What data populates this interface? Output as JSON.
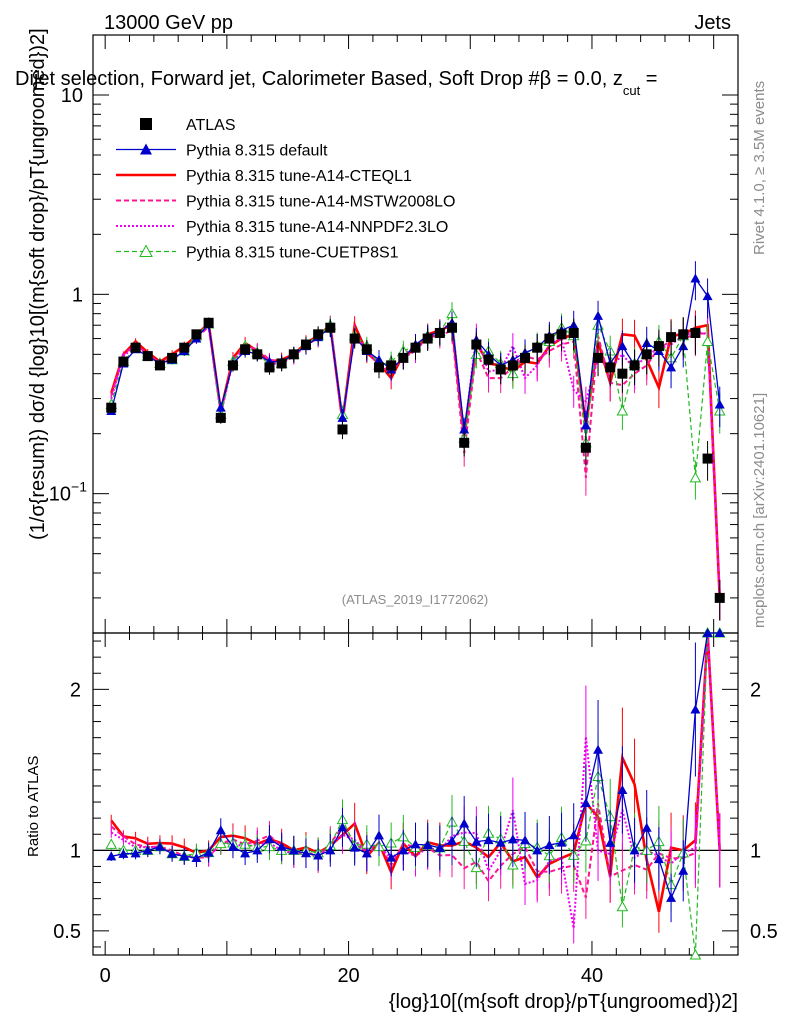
{
  "header": {
    "energy": "13000 GeV pp",
    "category": "Jets"
  },
  "title": "Dijet selection, Forward jet, Calorimeter Based, Soft Drop #β = 0.0, z",
  "title_sub": "cut",
  "title_tail": " =",
  "side": {
    "rivet": "Rivet 4.1.0, ≥ 3.5M events",
    "mcplots": "mcplots.cern.ch [arXiv:2401.10621]"
  },
  "analysis_id": "(ATLAS_2019_I1772062)",
  "axes": {
    "ylabel_main": "(1/σ{resum}) dσ/d {log}10[(m{soft drop}/pT{ungroomed})2]",
    "ylabel_ratio": "Ratio to ATLAS",
    "xlabel": "{log}10[(m{soft drop}/pT{ungroomed})2]"
  },
  "legend": [
    {
      "label": "ATLAS",
      "color": "#000000"
    },
    {
      "label": "Pythia 8.315 default",
      "color": "#0000cc"
    },
    {
      "label": "Pythia 8.315 tune-A14-CTEQL1",
      "color": "#ff0000"
    },
    {
      "label": "Pythia 8.315 tune-A14-MSTW2008LO",
      "color": "#ff1493"
    },
    {
      "label": "Pythia 8.315 tune-A14-NNPDF2.3LO",
      "color": "#ee00ee"
    },
    {
      "label": "Pythia 8.315 tune-CUETP8S1",
      "color": "#22bb22"
    }
  ],
  "chart_data": {
    "type": "line",
    "title": "Dijet selection, Forward jet, Calorimeter Based, Soft Drop beta = 0.0, z_cut =",
    "x": [
      0.5,
      1.5,
      2.5,
      3.5,
      4.5,
      5.5,
      6.5,
      7.5,
      8.5,
      9.5,
      10.5,
      11.5,
      12.5,
      13.5,
      14.5,
      15.5,
      16.5,
      17.5,
      18.5,
      19.5,
      20.5,
      21.5,
      22.5,
      23.5,
      24.5,
      25.5,
      26.5,
      27.5,
      28.5,
      29.5,
      30.5,
      31.5,
      32.5,
      33.5,
      34.5,
      35.5,
      36.5,
      37.5,
      38.5,
      39.5,
      40.5,
      41.5,
      42.5,
      43.5,
      44.5,
      45.5,
      46.5,
      47.5,
      48.5,
      49.5,
      50.5
    ],
    "xlim": [
      -1,
      52
    ],
    "ylim_main": [
      0.02,
      20
    ],
    "yscale_main": "log",
    "ylim_ratio": [
      0.35,
      2.35
    ],
    "x_ticks": [
      0,
      20,
      40
    ],
    "y_ticks_main": [
      "10^-1",
      "1",
      "10"
    ],
    "y_ticks_ratio": [
      0.5,
      1,
      2
    ],
    "series": [
      {
        "name": "ATLAS",
        "values": [
          0.27,
          0.46,
          0.54,
          0.49,
          0.44,
          0.48,
          0.54,
          0.63,
          0.72,
          0.24,
          0.44,
          0.53,
          0.5,
          0.43,
          0.45,
          0.5,
          0.56,
          0.63,
          0.68,
          0.21,
          0.6,
          0.53,
          0.43,
          0.44,
          0.48,
          0.54,
          0.6,
          0.64,
          0.68,
          0.18,
          0.56,
          0.47,
          0.42,
          0.44,
          0.48,
          0.54,
          0.6,
          0.63,
          0.64,
          0.17,
          0.48,
          0.43,
          0.4,
          0.44,
          0.5,
          0.55,
          0.61,
          0.63,
          0.64,
          0.15,
          0.03
        ]
      },
      {
        "name": "Pythia 8.315 default",
        "values": [
          0.26,
          0.45,
          0.53,
          0.49,
          0.45,
          0.47,
          0.52,
          0.6,
          0.71,
          0.27,
          0.45,
          0.52,
          0.5,
          0.46,
          0.46,
          0.5,
          0.55,
          0.61,
          0.68,
          0.24,
          0.61,
          0.52,
          0.47,
          0.42,
          0.48,
          0.56,
          0.62,
          0.65,
          0.72,
          0.21,
          0.59,
          0.5,
          0.44,
          0.47,
          0.51,
          0.54,
          0.62,
          0.66,
          0.7,
          0.22,
          0.78,
          0.45,
          0.55,
          0.44,
          0.57,
          0.52,
          0.43,
          0.55,
          1.2,
          0.98,
          0.28
        ]
      },
      {
        "name": "Pythia 8.315 tune-A14-CTEQL1",
        "values": [
          0.32,
          0.5,
          0.58,
          0.51,
          0.46,
          0.5,
          0.55,
          0.62,
          0.72,
          0.26,
          0.48,
          0.57,
          0.52,
          0.46,
          0.47,
          0.5,
          0.57,
          0.62,
          0.7,
          0.23,
          0.7,
          0.51,
          0.45,
          0.38,
          0.5,
          0.52,
          0.63,
          0.66,
          0.7,
          0.19,
          0.57,
          0.45,
          0.44,
          0.41,
          0.46,
          0.45,
          0.55,
          0.6,
          0.63,
          0.22,
          0.58,
          0.36,
          0.63,
          0.62,
          0.47,
          0.34,
          0.62,
          0.63,
          0.68,
          0.7,
          0.03
        ]
      },
      {
        "name": "Pythia 8.315 tune-A14-MSTW2008LO",
        "values": [
          0.31,
          0.5,
          0.56,
          0.5,
          0.45,
          0.48,
          0.52,
          0.6,
          0.69,
          0.25,
          0.47,
          0.55,
          0.53,
          0.47,
          0.46,
          0.49,
          0.56,
          0.6,
          0.71,
          0.24,
          0.62,
          0.53,
          0.45,
          0.4,
          0.5,
          0.55,
          0.61,
          0.62,
          0.66,
          0.16,
          0.52,
          0.38,
          0.38,
          0.43,
          0.49,
          0.47,
          0.52,
          0.56,
          0.58,
          0.12,
          0.62,
          0.36,
          0.35,
          0.4,
          0.44,
          0.54,
          0.58,
          0.6,
          0.63,
          0.64,
          0.03
        ]
      },
      {
        "name": "Pythia 8.315 tune-A14-NNPDF2.3LO",
        "values": [
          0.3,
          0.49,
          0.55,
          0.5,
          0.45,
          0.47,
          0.52,
          0.61,
          0.69,
          0.25,
          0.46,
          0.54,
          0.52,
          0.45,
          0.45,
          0.49,
          0.55,
          0.61,
          0.7,
          0.23,
          0.64,
          0.52,
          0.44,
          0.42,
          0.48,
          0.52,
          0.61,
          0.64,
          0.74,
          0.2,
          0.62,
          0.41,
          0.42,
          0.55,
          0.38,
          0.44,
          0.56,
          0.6,
          0.33,
          0.29,
          0.48,
          0.42,
          0.5,
          0.42,
          0.5,
          0.53,
          0.56,
          0.62,
          0.65,
          0.63,
          0.03
        ]
      },
      {
        "name": "Pythia 8.315 tune-CUETP8S1",
        "values": [
          0.28,
          0.46,
          0.54,
          0.49,
          0.45,
          0.47,
          0.52,
          0.62,
          0.71,
          0.25,
          0.46,
          0.55,
          0.51,
          0.44,
          0.45,
          0.5,
          0.56,
          0.62,
          0.7,
          0.25,
          0.62,
          0.55,
          0.44,
          0.46,
          0.52,
          0.55,
          0.62,
          0.65,
          0.8,
          0.19,
          0.5,
          0.52,
          0.45,
          0.4,
          0.5,
          0.55,
          0.58,
          0.68,
          0.62,
          0.18,
          0.7,
          0.52,
          0.26,
          0.45,
          0.5,
          0.58,
          0.48,
          0.62,
          0.12,
          0.58,
          0.26
        ]
      }
    ]
  }
}
